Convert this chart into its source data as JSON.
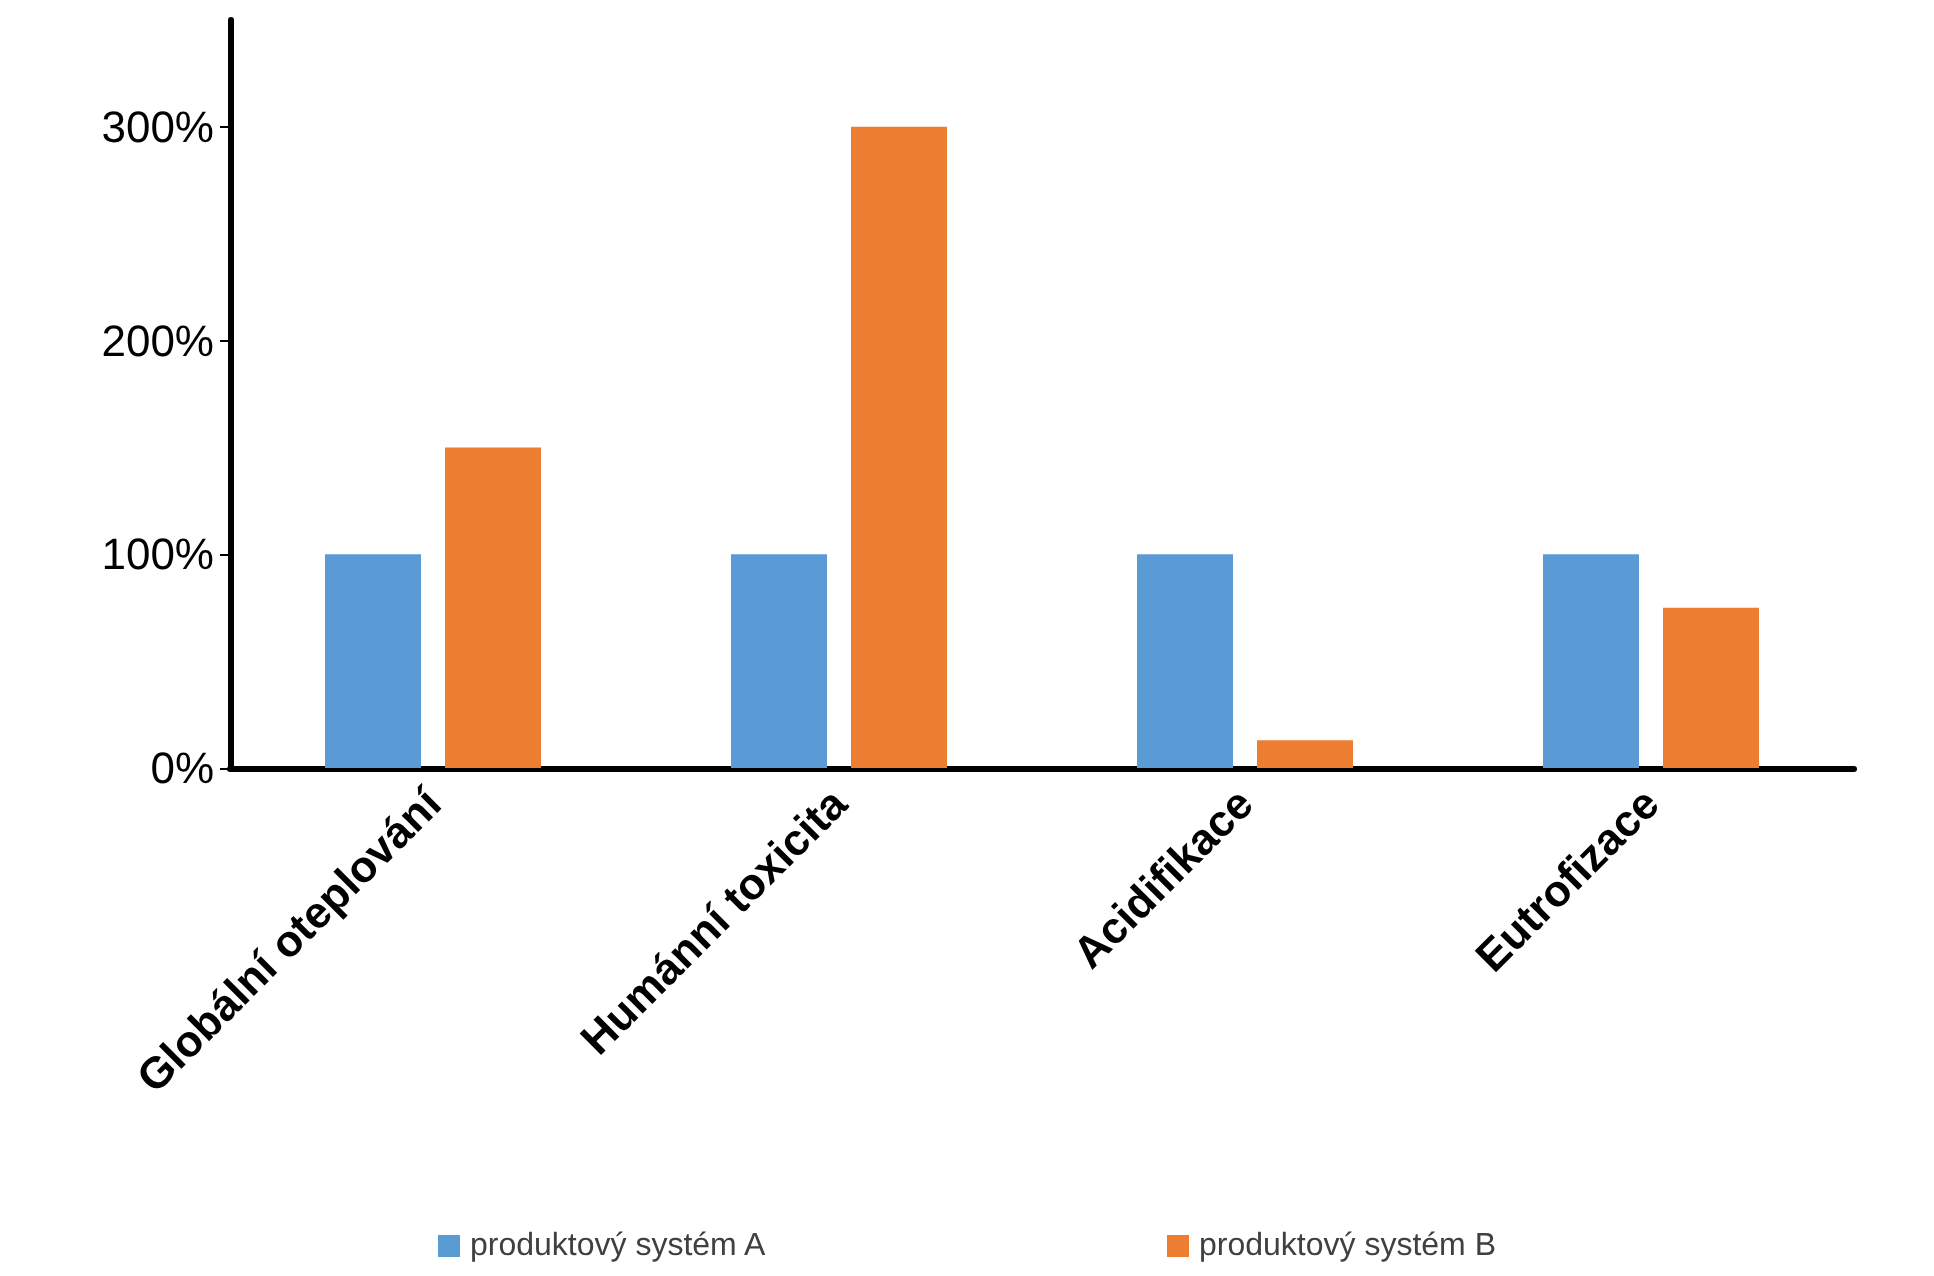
{
  "chart_data": {
    "type": "bar",
    "categories": [
      "Globální oteplování",
      "Humánní toxicita",
      "Acidifikace",
      "Eutrofizace"
    ],
    "series": [
      {
        "name": "produktový systém A",
        "color": "#5b9bd5",
        "values": [
          100,
          100,
          100,
          100
        ]
      },
      {
        "name": "produktový systém B",
        "color": "#ed7d31",
        "values": [
          150,
          300,
          13,
          75
        ]
      }
    ],
    "ylim": [
      0,
      350
    ],
    "yticks": [
      {
        "value": 0,
        "label": "0%"
      },
      {
        "value": 100,
        "label": "100%"
      },
      {
        "value": 200,
        "label": "200%"
      },
      {
        "value": 300,
        "label": "300%"
      }
    ],
    "grid": false,
    "legend": "bottom"
  }
}
